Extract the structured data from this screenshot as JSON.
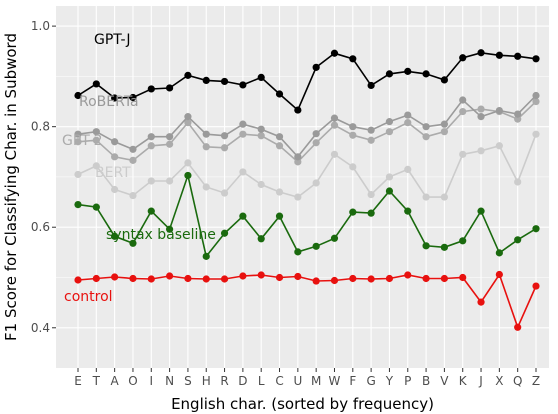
{
  "chart_data": {
    "type": "line",
    "xlabel": "English char. (sorted by frequency)",
    "ylabel": "F1 Score for Classifying Char. in Subword",
    "categories": [
      "E",
      "T",
      "A",
      "O",
      "I",
      "N",
      "S",
      "H",
      "R",
      "D",
      "L",
      "C",
      "U",
      "M",
      "W",
      "F",
      "G",
      "Y",
      "P",
      "B",
      "V",
      "K",
      "J",
      "X",
      "Q",
      "Z"
    ],
    "ylim": [
      0.32,
      1.04
    ],
    "yticks": [
      0.4,
      0.6,
      0.8,
      1.0
    ],
    "ytick_labels": [
      "0.4",
      "0.6",
      "0.8",
      "1.0"
    ],
    "grid": true,
    "background": "#ebebeb",
    "series": [
      {
        "name": "GPT-J",
        "color": "#000000",
        "values": [
          0.862,
          0.885,
          0.857,
          0.858,
          0.875,
          0.877,
          0.902,
          0.892,
          0.89,
          0.883,
          0.898,
          0.865,
          0.833,
          0.918,
          0.946,
          0.935,
          0.882,
          0.905,
          0.91,
          0.905,
          0.893,
          0.937,
          0.947,
          0.942,
          0.94,
          0.935
        ]
      },
      {
        "name": "RoBERTa",
        "color": "#9a9a9a",
        "values": [
          0.785,
          0.79,
          0.77,
          0.755,
          0.78,
          0.78,
          0.82,
          0.785,
          0.782,
          0.805,
          0.795,
          0.78,
          0.74,
          0.786,
          0.817,
          0.8,
          0.793,
          0.81,
          0.823,
          0.8,
          0.805,
          0.853,
          0.82,
          0.832,
          0.825,
          0.862
        ]
      },
      {
        "name": "GPT-2",
        "color": "#ababab",
        "values": [
          0.77,
          0.773,
          0.74,
          0.733,
          0.762,
          0.765,
          0.808,
          0.76,
          0.758,
          0.785,
          0.782,
          0.762,
          0.73,
          0.768,
          0.803,
          0.783,
          0.773,
          0.79,
          0.808,
          0.78,
          0.79,
          0.83,
          0.835,
          0.83,
          0.815,
          0.85
        ]
      },
      {
        "name": "BERT",
        "color": "#cccccc",
        "values": [
          0.705,
          0.722,
          0.675,
          0.663,
          0.692,
          0.692,
          0.728,
          0.68,
          0.668,
          0.71,
          0.685,
          0.67,
          0.66,
          0.688,
          0.745,
          0.72,
          0.665,
          0.7,
          0.715,
          0.66,
          0.66,
          0.745,
          0.752,
          0.762,
          0.69,
          0.785
        ]
      },
      {
        "name": "syntax baseline",
        "color": "#1a6a0e",
        "values": [
          0.645,
          0.64,
          0.582,
          0.568,
          0.632,
          0.596,
          0.703,
          0.542,
          0.588,
          0.622,
          0.577,
          0.622,
          0.551,
          0.562,
          0.578,
          0.63,
          0.628,
          0.672,
          0.632,
          0.563,
          0.56,
          0.573,
          0.632,
          0.549,
          0.575,
          0.597
        ]
      },
      {
        "name": "control",
        "color": "#e8110f",
        "values": [
          0.495,
          0.498,
          0.501,
          0.498,
          0.497,
          0.503,
          0.498,
          0.497,
          0.497,
          0.503,
          0.505,
          0.5,
          0.502,
          0.493,
          0.494,
          0.498,
          0.497,
          0.498,
          0.505,
          0.498,
          0.498,
          0.5,
          0.451,
          0.506,
          0.401,
          0.483
        ]
      }
    ],
    "labels": [
      {
        "text": "GPT-J",
        "color": "#000000"
      },
      {
        "text": "RoBERTa",
        "color": "#9a9a9a"
      },
      {
        "text": "GPT-2",
        "color": "#ababab"
      },
      {
        "text": "BERT",
        "color": "#cccccc"
      },
      {
        "text": "syntax baseline",
        "color": "#1a6a0e"
      },
      {
        "text": "control",
        "color": "#e8110f"
      }
    ]
  }
}
